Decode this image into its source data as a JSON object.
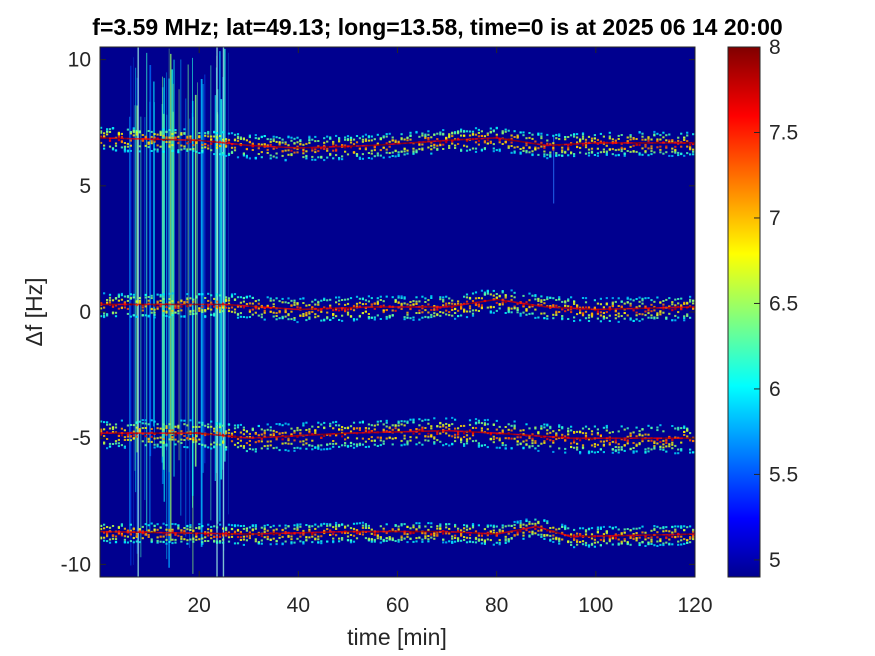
{
  "chart_data": {
    "type": "heatmap",
    "title": "f=3.59 MHz;  lat=49.13; long=13.58, time=0 is at 2025 06 14 20:00",
    "xlabel": "time [min]",
    "ylabel": "Δf [Hz]",
    "xlim": [
      0,
      120
    ],
    "ylim": [
      -10.5,
      10.5
    ],
    "xticks": [
      20,
      40,
      60,
      80,
      100,
      120
    ],
    "xtick_labels": [
      "20",
      "40",
      "60",
      "80",
      "100",
      "120"
    ],
    "yticks": [
      10,
      5,
      0,
      -5,
      -10
    ],
    "ytick_labels": [
      "10",
      "5",
      "0",
      "-5",
      "-10"
    ],
    "background_value": 5,
    "bands": [
      {
        "center": 6.8,
        "width": 0.6,
        "trace": [
          [
            0,
            6.9
          ],
          [
            20,
            6.8
          ],
          [
            30,
            6.6
          ],
          [
            40,
            6.5
          ],
          [
            55,
            6.6
          ],
          [
            70,
            6.8
          ],
          [
            80,
            6.9
          ],
          [
            90,
            6.6
          ],
          [
            100,
            6.7
          ],
          [
            120,
            6.7
          ]
        ]
      },
      {
        "center": 0.2,
        "width": 0.6,
        "trace": [
          [
            0,
            0.3
          ],
          [
            25,
            0.3
          ],
          [
            40,
            0.1
          ],
          [
            55,
            0.2
          ],
          [
            70,
            0.2
          ],
          [
            80,
            0.5
          ],
          [
            90,
            0.2
          ],
          [
            100,
            0.1
          ],
          [
            120,
            0.2
          ]
        ]
      },
      {
        "center": -4.8,
        "width": 0.7,
        "trace": [
          [
            0,
            -4.8
          ],
          [
            20,
            -4.8
          ],
          [
            30,
            -5.0
          ],
          [
            50,
            -4.8
          ],
          [
            70,
            -4.7
          ],
          [
            80,
            -4.8
          ],
          [
            95,
            -5.0
          ],
          [
            105,
            -5.0
          ],
          [
            120,
            -5.0
          ]
        ]
      },
      {
        "center": -8.7,
        "width": 0.5,
        "trace": [
          [
            0,
            -8.7
          ],
          [
            30,
            -8.8
          ],
          [
            50,
            -8.7
          ],
          [
            70,
            -8.7
          ],
          [
            80,
            -8.8
          ],
          [
            88,
            -8.5
          ],
          [
            95,
            -8.9
          ],
          [
            120,
            -8.8
          ]
        ]
      }
    ],
    "interference_region_min": [
      6,
      26
    ],
    "colorbar": {
      "colormap": "jet",
      "range": [
        4.9,
        8
      ],
      "ticks": [
        5,
        5.5,
        6,
        6.5,
        7,
        7.5,
        8
      ],
      "tick_labels": [
        "5",
        "5.5",
        "6",
        "6.5",
        "7",
        "7.5",
        "8"
      ]
    },
    "grid": false
  }
}
